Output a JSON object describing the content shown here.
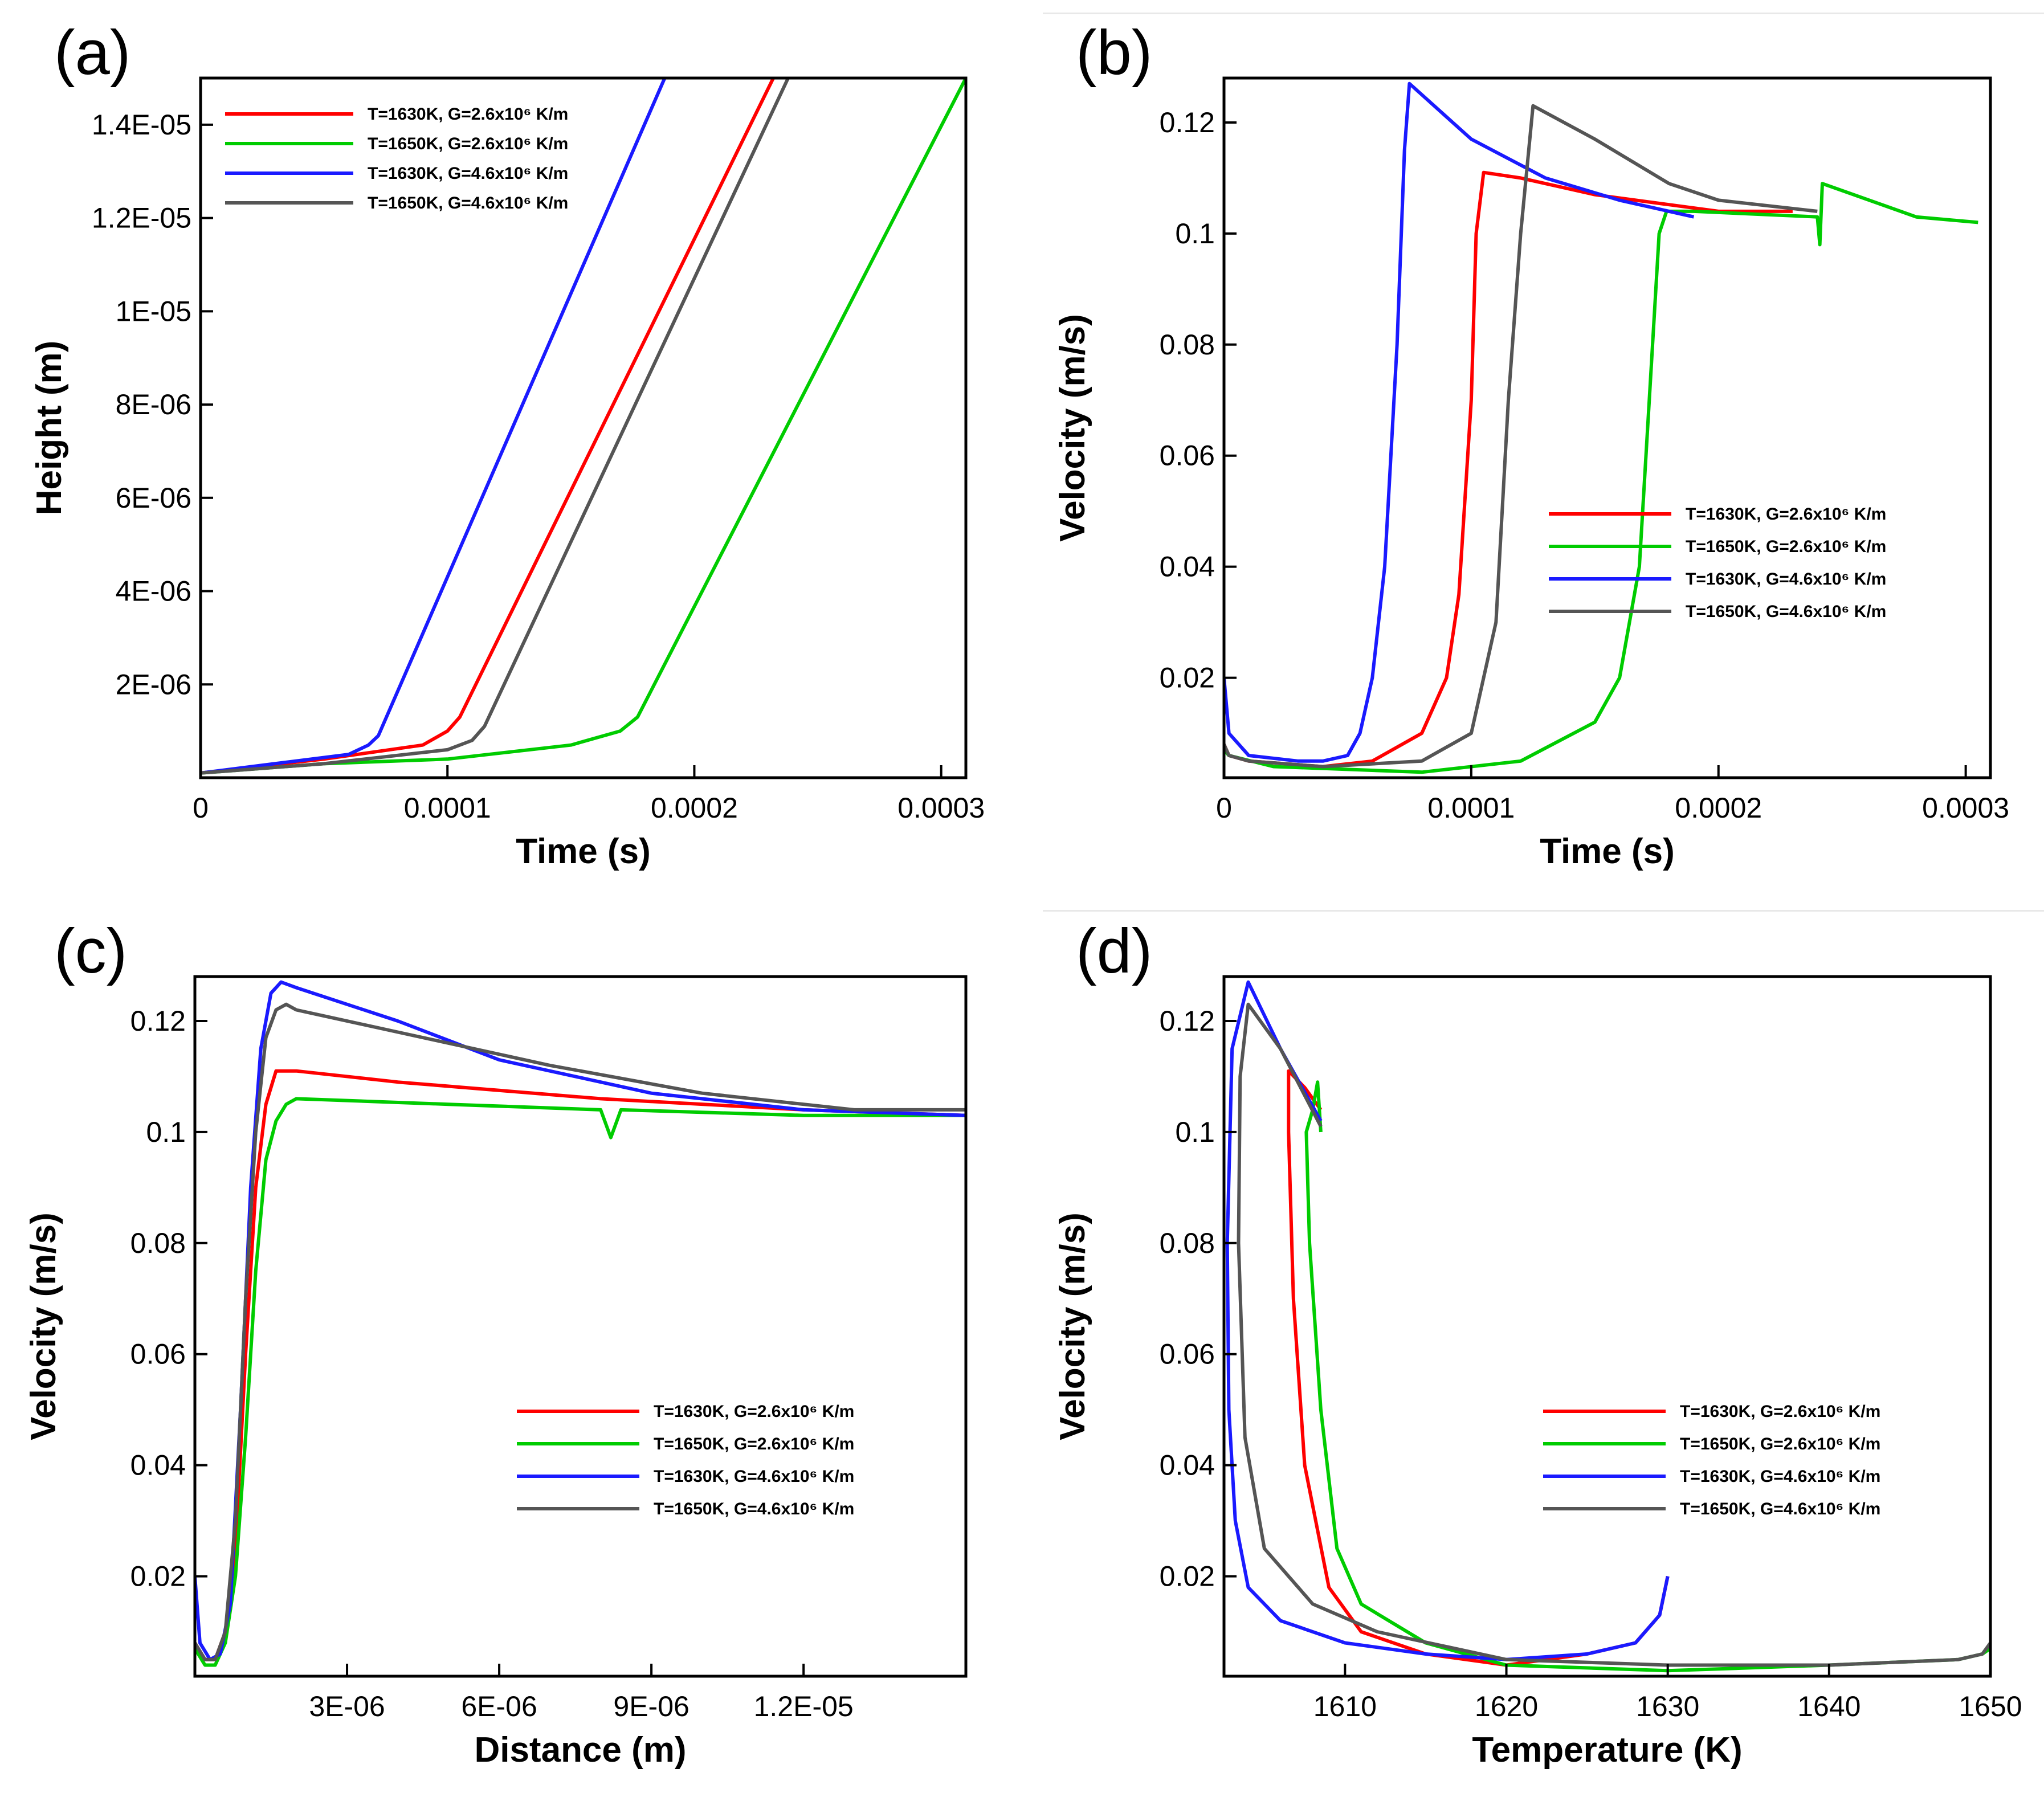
{
  "figure": {
    "legend_entries": [
      {
        "label": "T=1630K, G=2.6x10⁶ K/m",
        "color": "#ff0000"
      },
      {
        "label": "T=1650K, G=2.6x10⁶ K/m",
        "color": "#00cc00"
      },
      {
        "label": "T=1630K, G=4.6x10⁶ K/m",
        "color": "#1a1aff"
      },
      {
        "label": "T=1650K, G=4.6x10⁶ K/m",
        "color": "#555555"
      }
    ]
  },
  "chart_data": [
    {
      "panel_label": "(a)",
      "type": "line",
      "title": "",
      "xlabel": "Time (s)",
      "ylabel": "Height (m)",
      "xlim": [
        0,
        0.00031
      ],
      "ylim": [
        0,
        1.5e-05
      ],
      "xticks": [
        {
          "v": 0,
          "label": "0"
        },
        {
          "v": 0.0001,
          "label": "0.0001"
        },
        {
          "v": 0.0002,
          "label": "0.0002"
        },
        {
          "v": 0.0003,
          "label": "0.0003"
        }
      ],
      "yticks": [
        {
          "v": 2e-06,
          "label": "2E-06"
        },
        {
          "v": 4e-06,
          "label": "4E-06"
        },
        {
          "v": 6e-06,
          "label": "6E-06"
        },
        {
          "v": 8e-06,
          "label": "8E-06"
        },
        {
          "v": 1e-05,
          "label": "1E-05"
        },
        {
          "v": 1.2e-05,
          "label": "1.2E-05"
        },
        {
          "v": 1.4e-05,
          "label": "1.4E-05"
        }
      ],
      "legend_position": "top-left",
      "series": [
        {
          "name": "T=1630K, G=2.6x10⁶ K/m",
          "x": [
            0,
            5e-05,
            9e-05,
            0.0001,
            0.000105,
            0.000232
          ],
          "y": [
            1e-07,
            4e-07,
            7e-07,
            1e-06,
            1.3e-06,
            1.5e-05
          ]
        },
        {
          "name": "T=1650K, G=2.6x10⁶ K/m",
          "x": [
            0,
            5e-05,
            0.0001,
            0.00015,
            0.00017,
            0.000177,
            0.00031
          ],
          "y": [
            1e-07,
            3e-07,
            4e-07,
            7e-07,
            1e-06,
            1.3e-06,
            1.5e-05
          ]
        },
        {
          "name": "T=1630K, G=4.6x10⁶ K/m",
          "x": [
            0,
            3e-05,
            6e-05,
            6.8e-05,
            7.2e-05,
            0.000188
          ],
          "y": [
            1e-07,
            3e-07,
            5e-07,
            7e-07,
            9e-07,
            1.5e-05
          ]
        },
        {
          "name": "T=1650K, G=4.6x10⁶ K/m",
          "x": [
            0,
            5e-05,
            0.0001,
            0.00011,
            0.000115,
            0.000238
          ],
          "y": [
            1e-07,
            3e-07,
            6e-07,
            8e-07,
            1.1e-06,
            1.5e-05
          ]
        }
      ]
    },
    {
      "panel_label": "(b)",
      "type": "line",
      "title": "",
      "xlabel": "Time (s)",
      "ylabel": "Velocity (m/s)",
      "xlim": [
        0,
        0.00031
      ],
      "ylim": [
        0.002,
        0.128
      ],
      "xticks": [
        {
          "v": 0,
          "label": "0"
        },
        {
          "v": 0.0001,
          "label": "0.0001"
        },
        {
          "v": 0.0002,
          "label": "0.0002"
        },
        {
          "v": 0.0003,
          "label": "0.0003"
        }
      ],
      "yticks": [
        {
          "v": 0.02,
          "label": "0.02"
        },
        {
          "v": 0.04,
          "label": "0.04"
        },
        {
          "v": 0.06,
          "label": "0.06"
        },
        {
          "v": 0.08,
          "label": "0.08"
        },
        {
          "v": 0.1,
          "label": "0.1"
        },
        {
          "v": 0.12,
          "label": "0.12"
        }
      ],
      "legend_position": "center-right",
      "series": [
        {
          "name": "T=1630K, G=2.6x10⁶ K/m",
          "x": [
            0,
            2e-06,
            1e-05,
            4e-05,
            6e-05,
            8e-05,
            9e-05,
            9.5e-05,
            0.0001,
            0.000102,
            0.000105,
            0.00012,
            0.00015,
            0.0002,
            0.00023
          ],
          "y": [
            0.008,
            0.006,
            0.005,
            0.004,
            0.005,
            0.01,
            0.02,
            0.035,
            0.07,
            0.1,
            0.111,
            0.11,
            0.107,
            0.104,
            0.104
          ]
        },
        {
          "name": "T=1650K, G=2.6x10⁶ K/m",
          "x": [
            0,
            2e-06,
            2e-05,
            8e-05,
            0.00012,
            0.00015,
            0.00016,
            0.000168,
            0.000172,
            0.000176,
            0.000179,
            0.00019,
            0.00024,
            0.000241,
            0.000242,
            0.00028,
            0.000305
          ],
          "y": [
            0.007,
            0.006,
            0.004,
            0.003,
            0.005,
            0.012,
            0.02,
            0.04,
            0.07,
            0.1,
            0.104,
            0.104,
            0.103,
            0.098,
            0.109,
            0.103,
            0.102
          ]
        },
        {
          "name": "T=1630K, G=4.6x10⁶ K/m",
          "x": [
            0,
            2e-06,
            1e-05,
            3e-05,
            4e-05,
            5e-05,
            5.5e-05,
            6e-05,
            6.5e-05,
            7e-05,
            7.3e-05,
            7.5e-05,
            0.0001,
            0.00013,
            0.00016,
            0.00019
          ],
          "y": [
            0.02,
            0.01,
            0.006,
            0.005,
            0.005,
            0.006,
            0.01,
            0.02,
            0.04,
            0.08,
            0.115,
            0.127,
            0.117,
            0.11,
            0.106,
            0.103
          ]
        },
        {
          "name": "T=1650K, G=4.6x10⁶ K/m",
          "x": [
            0,
            2e-06,
            1e-05,
            4e-05,
            8e-05,
            0.0001,
            0.00011,
            0.000115,
            0.00012,
            0.000125,
            0.00015,
            0.00018,
            0.0002,
            0.00024
          ],
          "y": [
            0.008,
            0.006,
            0.005,
            0.004,
            0.005,
            0.01,
            0.03,
            0.07,
            0.1,
            0.123,
            0.117,
            0.109,
            0.106,
            0.104
          ]
        }
      ]
    },
    {
      "panel_label": "(c)",
      "type": "line",
      "title": "",
      "xlabel": "Distance (m)",
      "ylabel": "Velocity (m/s)",
      "xlim": [
        0,
        1.52e-05
      ],
      "ylim": [
        0.002,
        0.128
      ],
      "xticks": [
        {
          "v": 3e-06,
          "label": "3E-06"
        },
        {
          "v": 6e-06,
          "label": "6E-06"
        },
        {
          "v": 9e-06,
          "label": "9E-06"
        },
        {
          "v": 1.2e-05,
          "label": "1.2E-05"
        }
      ],
      "yticks": [
        {
          "v": 0.02,
          "label": "0.02"
        },
        {
          "v": 0.04,
          "label": "0.04"
        },
        {
          "v": 0.06,
          "label": "0.06"
        },
        {
          "v": 0.08,
          "label": "0.08"
        },
        {
          "v": 0.1,
          "label": "0.1"
        },
        {
          "v": 0.12,
          "label": "0.12"
        }
      ],
      "legend_position": "center-right",
      "series": [
        {
          "name": "T=1630K, G=2.6x10⁶ K/m",
          "x": [
            0,
            2e-07,
            4e-07,
            6e-07,
            8e-07,
            1e-06,
            1.2e-06,
            1.4e-06,
            1.6e-06,
            2e-06,
            4e-06,
            8e-06,
            1.2e-05,
            1.52e-05
          ],
          "y": [
            0.008,
            0.005,
            0.005,
            0.01,
            0.025,
            0.06,
            0.09,
            0.105,
            0.111,
            0.111,
            0.109,
            0.106,
            0.104,
            0.103
          ]
        },
        {
          "name": "T=1650K, G=2.6x10⁶ K/m",
          "x": [
            0,
            2e-07,
            4e-07,
            6e-07,
            8e-07,
            1e-06,
            1.2e-06,
            1.4e-06,
            1.6e-06,
            1.8e-06,
            2e-06,
            5e-06,
            8e-06,
            8.2e-06,
            8.4e-06,
            1.2e-05,
            1.52e-05
          ],
          "y": [
            0.007,
            0.004,
            0.004,
            0.008,
            0.02,
            0.045,
            0.075,
            0.095,
            0.102,
            0.105,
            0.106,
            0.105,
            0.104,
            0.099,
            0.104,
            0.103,
            0.103
          ]
        },
        {
          "name": "T=1630K, G=4.6x10⁶ K/m",
          "x": [
            0,
            1e-07,
            3e-07,
            5e-07,
            7e-07,
            9e-07,
            1.1e-06,
            1.3e-06,
            1.5e-06,
            1.7e-06,
            2e-06,
            4e-06,
            6e-06,
            9e-06,
            1.2e-05,
            1.52e-05
          ],
          "y": [
            0.02,
            0.008,
            0.005,
            0.006,
            0.015,
            0.05,
            0.09,
            0.115,
            0.125,
            0.127,
            0.126,
            0.12,
            0.113,
            0.107,
            0.104,
            0.103
          ]
        },
        {
          "name": "T=1650K, G=4.6x10⁶ K/m",
          "x": [
            0,
            2e-07,
            4e-07,
            6e-07,
            8e-07,
            1e-06,
            1.2e-06,
            1.4e-06,
            1.6e-06,
            1.8e-06,
            2e-06,
            4e-06,
            7e-06,
            1e-05,
            1.3e-05,
            1.52e-05
          ],
          "y": [
            0.008,
            0.005,
            0.005,
            0.01,
            0.03,
            0.07,
            0.1,
            0.117,
            0.122,
            0.123,
            0.122,
            0.118,
            0.112,
            0.107,
            0.104,
            0.104
          ]
        }
      ]
    },
    {
      "panel_label": "(d)",
      "type": "line",
      "title": "",
      "xlabel": "Temperature (K)",
      "ylabel": "Velocity (m/s)",
      "xlim": [
        1602.5,
        1650
      ],
      "ylim": [
        0.002,
        0.128
      ],
      "xticks": [
        {
          "v": 1610,
          "label": "1610"
        },
        {
          "v": 1620,
          "label": "1620"
        },
        {
          "v": 1630,
          "label": "1630"
        },
        {
          "v": 1640,
          "label": "1640"
        },
        {
          "v": 1650,
          "label": "1650"
        }
      ],
      "yticks": [
        {
          "v": 0.02,
          "label": "0.02"
        },
        {
          "v": 0.04,
          "label": "0.04"
        },
        {
          "v": 0.06,
          "label": "0.06"
        },
        {
          "v": 0.08,
          "label": "0.08"
        },
        {
          "v": 0.1,
          "label": "0.1"
        },
        {
          "v": 0.12,
          "label": "0.12"
        }
      ],
      "legend_position": "center-right",
      "series": [
        {
          "name": "T=1630K, G=2.6x10⁶ K/m",
          "x": [
            1630,
            1629.5,
            1628,
            1625,
            1620,
            1615,
            1611,
            1609,
            1607.5,
            1606.8,
            1606.5,
            1606.5,
            1607.5,
            1608.5
          ],
          "y": [
            0.02,
            0.013,
            0.008,
            0.006,
            0.004,
            0.006,
            0.01,
            0.018,
            0.04,
            0.07,
            0.1,
            0.111,
            0.108,
            0.104
          ]
        },
        {
          "name": "T=1650K, G=2.6x10⁶ K/m",
          "x": [
            1650,
            1649.5,
            1648,
            1640,
            1630,
            1620,
            1615,
            1611,
            1609.5,
            1608.5,
            1607.8,
            1607.6,
            1608,
            1608.3,
            1608.5
          ],
          "y": [
            0.007,
            0.006,
            0.005,
            0.004,
            0.003,
            0.004,
            0.008,
            0.015,
            0.025,
            0.05,
            0.08,
            0.1,
            0.104,
            0.109,
            0.1
          ]
        },
        {
          "name": "T=1630K, G=4.6x10⁶ K/m",
          "x": [
            1630,
            1629.5,
            1628,
            1625,
            1620,
            1615,
            1610,
            1606,
            1604,
            1603.2,
            1602.8,
            1602.7,
            1603,
            1604,
            1606,
            1608.5
          ],
          "y": [
            0.02,
            0.013,
            0.008,
            0.006,
            0.005,
            0.006,
            0.008,
            0.012,
            0.018,
            0.03,
            0.05,
            0.08,
            0.115,
            0.127,
            0.115,
            0.102
          ]
        },
        {
          "name": "T=1650K, G=4.6x10⁶ K/m",
          "x": [
            1650,
            1649.5,
            1648,
            1640,
            1630,
            1620,
            1612,
            1608,
            1605,
            1603.8,
            1603.4,
            1603.5,
            1604,
            1606,
            1608.5
          ],
          "y": [
            0.008,
            0.006,
            0.005,
            0.004,
            0.004,
            0.005,
            0.01,
            0.015,
            0.025,
            0.045,
            0.08,
            0.11,
            0.123,
            0.115,
            0.101
          ]
        }
      ]
    }
  ]
}
